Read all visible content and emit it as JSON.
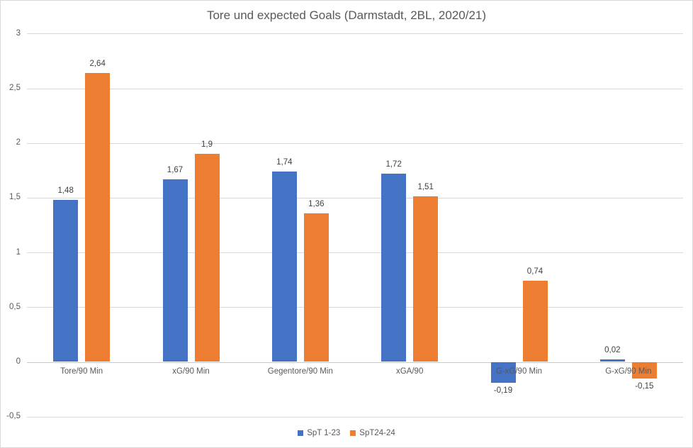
{
  "title": "Tore und expected Goals (Darmstadt, 2BL, 2020/21)",
  "colors": {
    "series1": "#4472C4",
    "series2": "#ED7D31",
    "gridline": "#D9D9D9",
    "zero_line": "#C9C9C9",
    "axis_text": "#595959",
    "data_label_text": "#404040",
    "title_text": "#595959",
    "border": "#D9D9D9",
    "background": "#FFFFFF"
  },
  "y_axis": {
    "min": -0.5,
    "max": 3,
    "step": 0.5,
    "tick_labels": [
      "3",
      "2,5",
      "2",
      "1,5",
      "1",
      "0,5",
      "0",
      "-0,5"
    ]
  },
  "legend": {
    "position": "bottom",
    "items": [
      {
        "label": "SpT 1-23",
        "color": "#4472C4"
      },
      {
        "label": "SpT24-24",
        "color": "#ED7D31"
      }
    ]
  },
  "chart_data": {
    "type": "bar",
    "title": "Tore und expected Goals (Darmstadt, 2BL, 2020/21)",
    "categories": [
      "Tore/90 Min",
      "xG/90 Min",
      "Gegentore/90 Min",
      "xGA/90",
      "G-xG/90 Min",
      "G-xG/90 Min"
    ],
    "series": [
      {
        "name": "SpT 1-23",
        "color": "#4472C4",
        "values": [
          1.48,
          1.67,
          1.74,
          1.72,
          -0.19,
          0.02
        ],
        "labels": [
          "1,48",
          "1,67",
          "1,74",
          "1,72",
          "-0,19",
          "0,02"
        ]
      },
      {
        "name": "SpT24-24",
        "color": "#ED7D31",
        "values": [
          2.64,
          1.9,
          1.36,
          1.51,
          0.74,
          -0.15
        ],
        "labels": [
          "2,64",
          "1,9",
          "1,36",
          "1,51",
          "0,74",
          "-0,15"
        ]
      }
    ],
    "xlabel": "",
    "ylabel": "",
    "ylim": [
      -0.5,
      3
    ],
    "grid": true,
    "legend_position": "bottom"
  }
}
